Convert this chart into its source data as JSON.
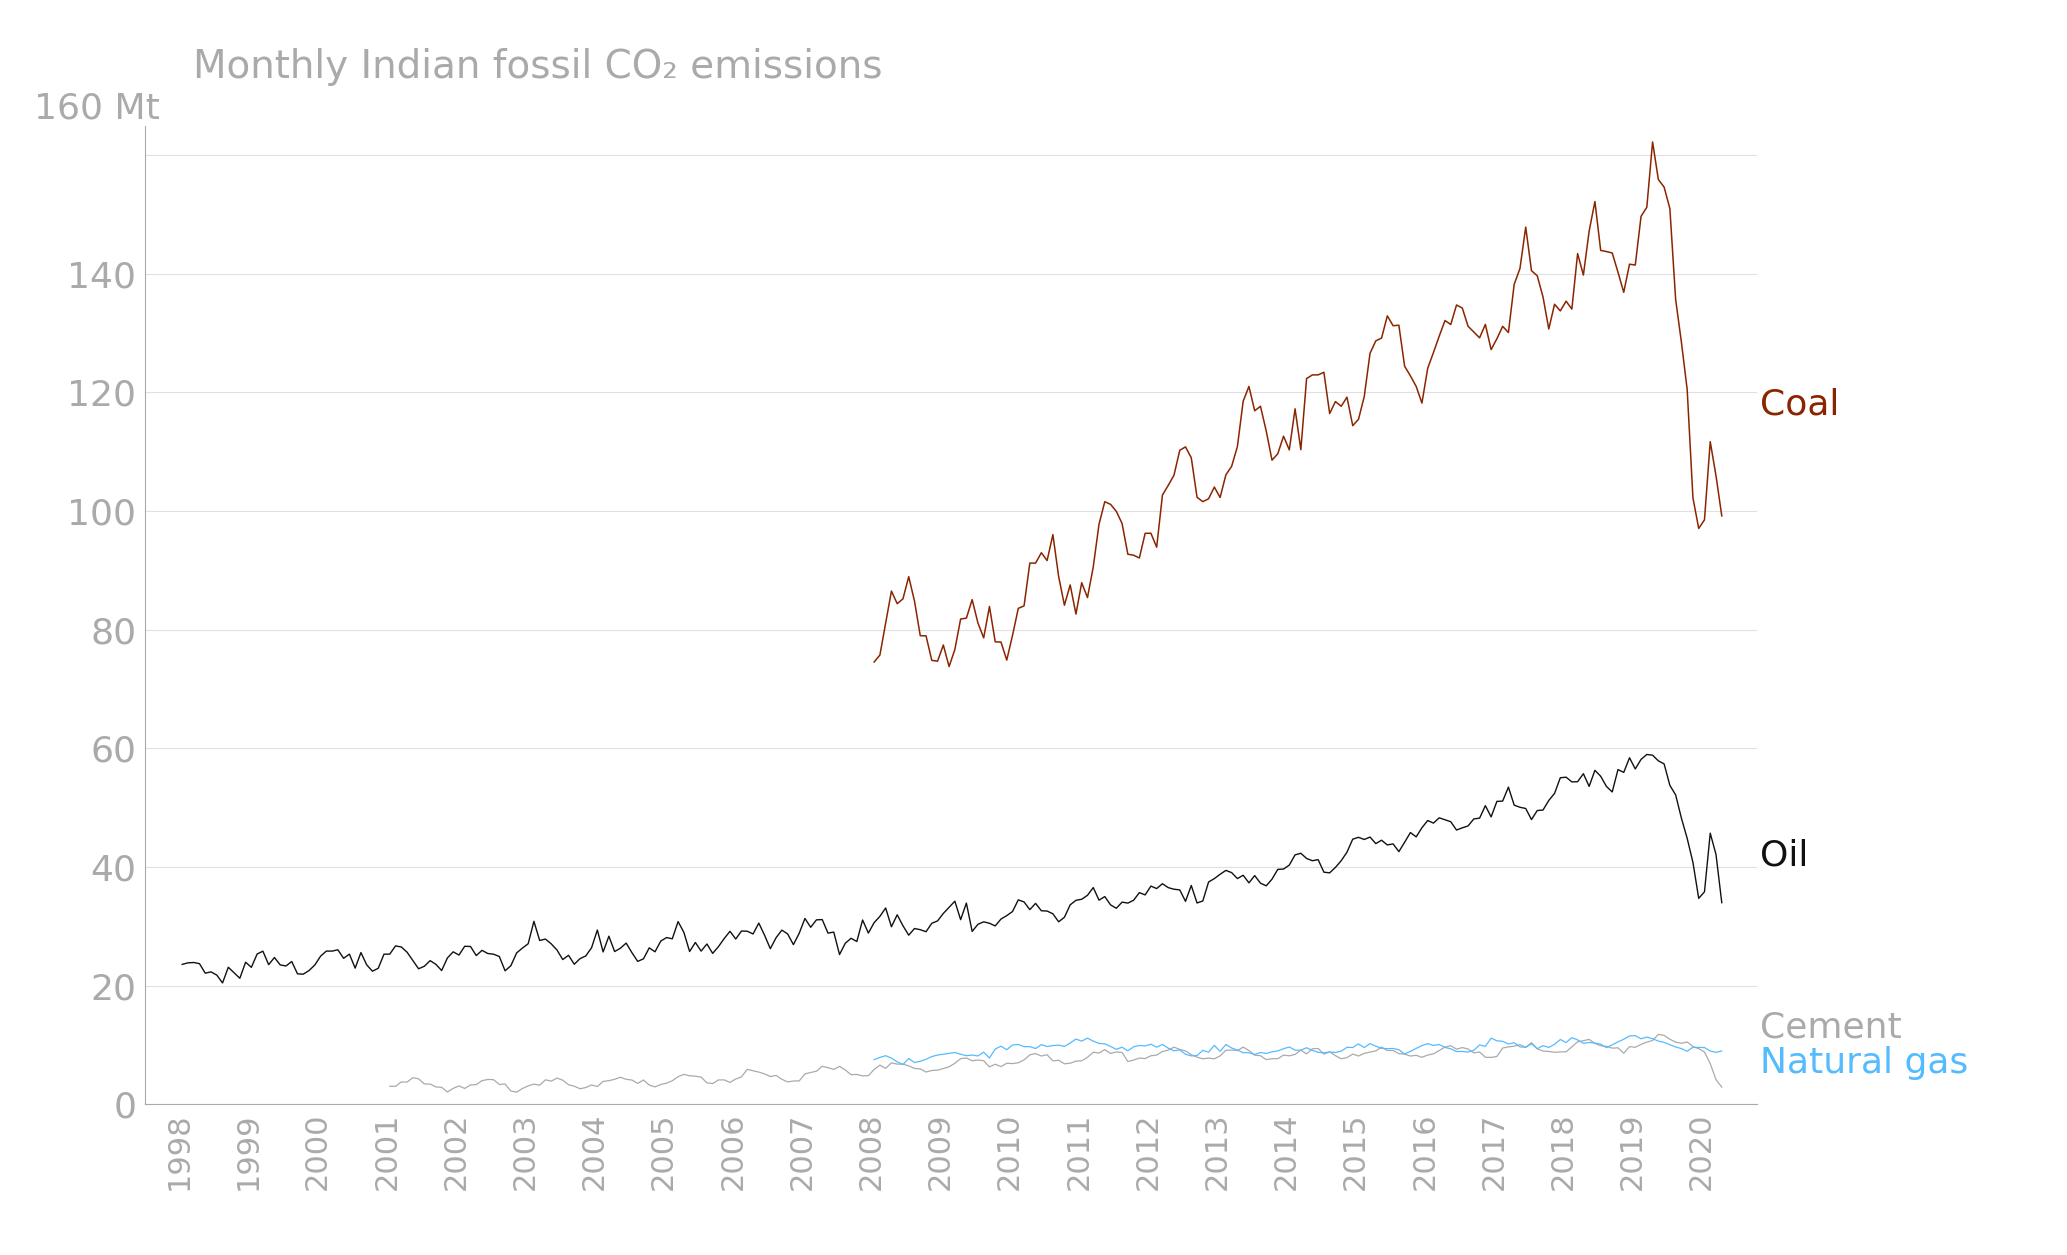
{
  "title": "Monthly Indian fossil CO₂ emissions",
  "ylabel": "160 Mt",
  "ylim": [
    0,
    165
  ],
  "yticks": [
    0,
    20,
    40,
    60,
    80,
    100,
    120,
    140,
    160
  ],
  "xlim_start": 1997.5,
  "xlim_end": 2020.8,
  "xtick_years": [
    1998,
    1999,
    2000,
    2001,
    2002,
    2003,
    2004,
    2005,
    2006,
    2007,
    2008,
    2009,
    2010,
    2011,
    2012,
    2013,
    2014,
    2015,
    2016,
    2017,
    2018,
    2019,
    2020
  ],
  "bg_color": "#ffffff",
  "grid_color": "#e0e0e0",
  "axis_color": "#aaaaaa",
  "tick_label_color": "#aaaaaa",
  "title_color": "#aaaaaa",
  "coal_color": "#8b2500",
  "oil_color": "#111111",
  "cement_color": "#aaaaaa",
  "gas_color": "#55bbff",
  "label_coal": "Coal",
  "label_oil": "Oil",
  "label_cement": "Cement",
  "label_gas": "Natural gas",
  "coal_label_color": "#8b2500",
  "oil_label_color": "#111111",
  "cement_label_color": "#aaaaaa",
  "gas_label_color": "#55bbff"
}
